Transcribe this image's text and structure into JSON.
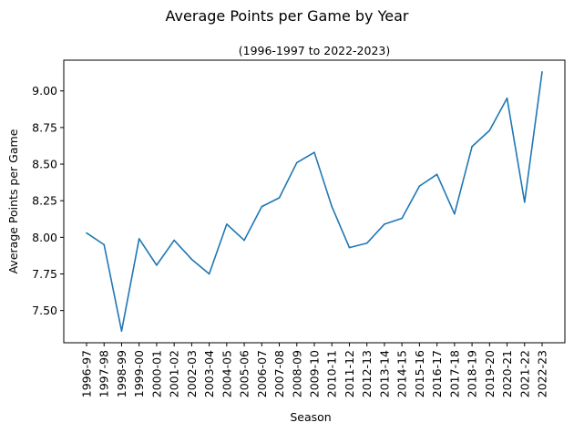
{
  "chart_data": {
    "type": "line",
    "title": "Average Points per Game by Year",
    "subtitle": "(1996-1997 to 2022-2023)",
    "xlabel": "Season",
    "ylabel": "Average Points per Game",
    "categories": [
      "1996-97",
      "1997-98",
      "1998-99",
      "1999-00",
      "2000-01",
      "2001-02",
      "2002-03",
      "2003-04",
      "2004-05",
      "2005-06",
      "2006-07",
      "2007-08",
      "2008-09",
      "2009-10",
      "2010-11",
      "2011-12",
      "2012-13",
      "2013-14",
      "2014-15",
      "2015-16",
      "2016-17",
      "2017-18",
      "2018-19",
      "2019-20",
      "2020-21",
      "2021-22",
      "2022-23"
    ],
    "series": [
      {
        "values": [
          8.03,
          7.95,
          7.36,
          7.99,
          7.81,
          7.98,
          7.85,
          7.75,
          8.09,
          7.98,
          8.21,
          8.27,
          8.51,
          8.58,
          8.21,
          7.93,
          7.96,
          8.09,
          8.13,
          8.35,
          8.43,
          8.16,
          8.62,
          8.73,
          8.95,
          8.24,
          9.13
        ],
        "color": "#1f77b4"
      }
    ],
    "ylim": [
      7.28,
      9.21
    ],
    "yticks": [
      "7.50",
      "7.75",
      "8.00",
      "8.25",
      "8.50",
      "8.75",
      "9.00"
    ],
    "grid": false
  }
}
